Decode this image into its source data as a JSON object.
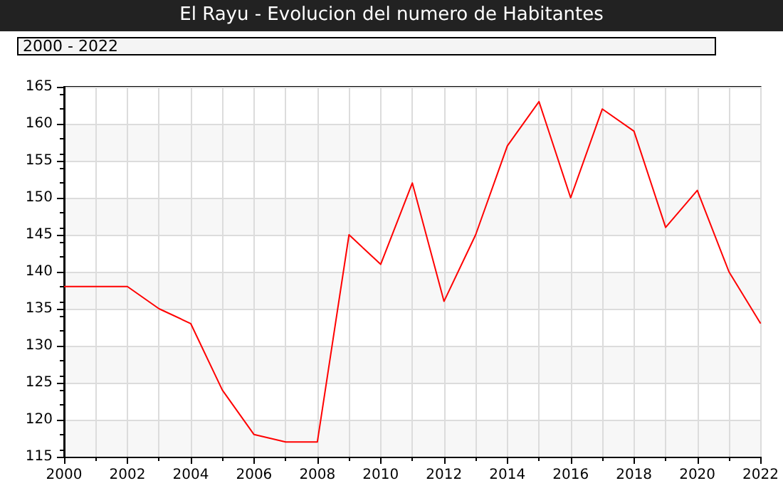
{
  "chart_data": {
    "type": "line",
    "title": "El Rayu - Evolucion del numero de Habitantes",
    "subtitle": "2000 - 2022",
    "x": [
      2000,
      2001,
      2002,
      2003,
      2004,
      2005,
      2006,
      2007,
      2008,
      2009,
      2010,
      2011,
      2012,
      2013,
      2014,
      2015,
      2016,
      2017,
      2018,
      2019,
      2020,
      2021,
      2022
    ],
    "series": [
      {
        "color": "#ff0000",
        "values": [
          138,
          138,
          138,
          135,
          133,
          124,
          118,
          117,
          117,
          145,
          141,
          152,
          136,
          145,
          157,
          163,
          150,
          162,
          159,
          146,
          151,
          140,
          133
        ]
      }
    ],
    "xlim": [
      2000,
      2022
    ],
    "xticks": [
      2000,
      2002,
      2004,
      2006,
      2008,
      2010,
      2012,
      2014,
      2016,
      2018,
      2020,
      2022
    ],
    "ylim": [
      115,
      165
    ],
    "yticks": [
      115,
      120,
      125,
      130,
      135,
      140,
      145,
      150,
      155,
      160,
      165
    ],
    "grid": true,
    "marker": "none",
    "line_style": "solid"
  }
}
